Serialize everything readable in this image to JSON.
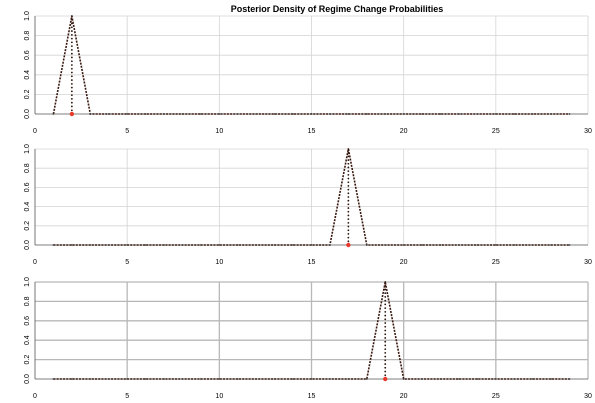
{
  "title": "Posterior Density of Regime Change Probabilities",
  "chart_data": [
    {
      "type": "line",
      "title": "Posterior Density of Regime Change Probabilities",
      "xlabel": "",
      "ylabel": "",
      "xlim": [
        0,
        30
      ],
      "ylim": [
        0,
        1
      ],
      "xticks": [
        0,
        5,
        10,
        15,
        20,
        25,
        30
      ],
      "yticks": [
        0.0,
        0.2,
        0.4,
        0.6,
        0.8,
        1.0
      ],
      "ytick_labels": [
        "0.0",
        "0.2",
        "0.4",
        "0.6",
        "0.8",
        "1.0"
      ],
      "grid": true,
      "x": [
        1,
        2,
        3,
        4,
        5,
        6,
        7,
        8,
        9,
        10,
        11,
        12,
        13,
        14,
        15,
        16,
        17,
        18,
        19,
        20,
        21,
        22,
        23,
        24,
        25,
        26,
        27,
        28,
        29
      ],
      "y": [
        0,
        1,
        0,
        0,
        0,
        0,
        0,
        0,
        0,
        0,
        0,
        0,
        0,
        0,
        0,
        0,
        0,
        0,
        0,
        0,
        0,
        0,
        0,
        0,
        0,
        0,
        0,
        0,
        0
      ],
      "marker_color": "#e8392b",
      "line_color": "#3a1a10"
    },
    {
      "type": "line",
      "title": "",
      "xlabel": "",
      "ylabel": "",
      "xlim": [
        0,
        30
      ],
      "ylim": [
        0,
        1
      ],
      "xticks": [
        0,
        5,
        10,
        15,
        20,
        25,
        30
      ],
      "yticks": [
        0.0,
        0.2,
        0.4,
        0.6,
        0.8,
        1.0
      ],
      "ytick_labels": [
        "0.0",
        "0.2",
        "0.4",
        "0.6",
        "0.8",
        "1.0"
      ],
      "grid": true,
      "x": [
        1,
        2,
        3,
        4,
        5,
        6,
        7,
        8,
        9,
        10,
        11,
        12,
        13,
        14,
        15,
        16,
        17,
        18,
        19,
        20,
        21,
        22,
        23,
        24,
        25,
        26,
        27,
        28,
        29
      ],
      "y": [
        0,
        0,
        0,
        0,
        0,
        0,
        0,
        0,
        0,
        0,
        0,
        0,
        0,
        0,
        0,
        0,
        1,
        0,
        0,
        0,
        0,
        0,
        0,
        0,
        0,
        0,
        0,
        0,
        0
      ],
      "marker_color": "#e8392b",
      "line_color": "#3a1a10"
    },
    {
      "type": "line",
      "title": "",
      "xlabel": "",
      "ylabel": "",
      "xlim": [
        0,
        30
      ],
      "ylim": [
        0,
        1
      ],
      "xticks": [
        0,
        5,
        10,
        15,
        20,
        25,
        30
      ],
      "yticks": [
        0.0,
        0.2,
        0.4,
        0.6,
        0.8,
        1.0
      ],
      "ytick_labels": [
        "0.0",
        "0.2",
        "0.4",
        "0.6",
        "0.8",
        "1.0"
      ],
      "grid": true,
      "x": [
        1,
        2,
        3,
        4,
        5,
        6,
        7,
        8,
        9,
        10,
        11,
        12,
        13,
        14,
        15,
        16,
        17,
        18,
        19,
        20,
        21,
        22,
        23,
        24,
        25,
        26,
        27,
        28,
        29
      ],
      "y": [
        0,
        0,
        0,
        0,
        0,
        0,
        0,
        0,
        0,
        0,
        0,
        0,
        0,
        0,
        0,
        0,
        0,
        0,
        1,
        0,
        0,
        0,
        0,
        0,
        0,
        0,
        0,
        0,
        0
      ],
      "marker_color": "#e8392b",
      "line_color": "#3a1a10"
    }
  ]
}
